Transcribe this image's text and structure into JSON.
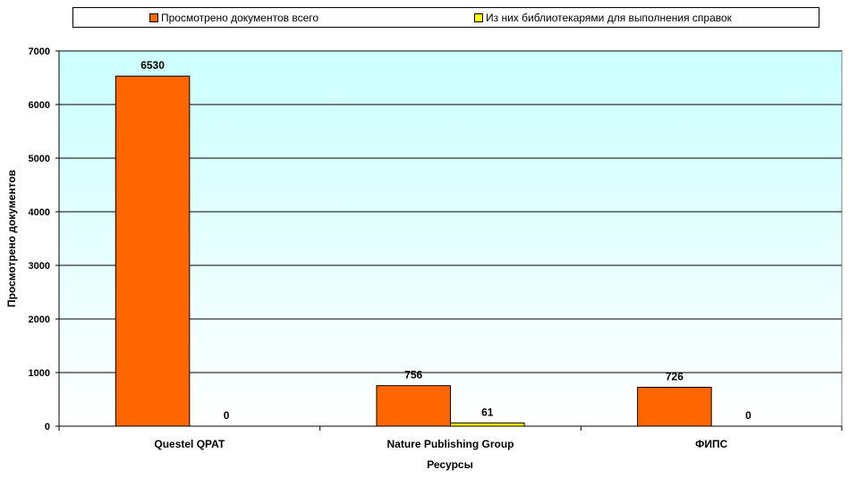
{
  "chart_data": {
    "type": "bar",
    "categories": [
      "Questel QPAT",
      "Nature Publishing Group",
      "ФИПС"
    ],
    "series": [
      {
        "name": "Просмотрено документов всего",
        "values": [
          6530,
          756,
          726
        ],
        "color": "#FF6600"
      },
      {
        "name": "Из них библиотекарями для выполнения справок",
        "values": [
          0,
          61,
          0
        ],
        "color": "#FFFF00"
      }
    ],
    "xlabel": "Ресурсы",
    "ylabel": "Просмотрено документов",
    "ylim": [
      0,
      7000
    ],
    "yticks": [
      0,
      1000,
      2000,
      3000,
      4000,
      5000,
      6000,
      7000
    ],
    "grid": true,
    "legend_position": "top",
    "plot_background": [
      "#CCFFFF",
      "#FFFFFF"
    ]
  }
}
